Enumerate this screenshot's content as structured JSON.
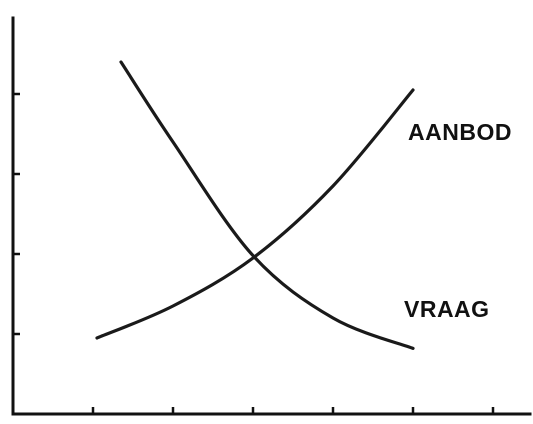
{
  "chart_data": {
    "type": "line",
    "title": "",
    "xlabel": "",
    "ylabel": "",
    "xlim": [
      0,
      6.6
    ],
    "ylim": [
      0,
      5.1
    ],
    "x_tick_values": [
      1,
      2,
      3,
      4,
      5,
      6
    ],
    "y_tick_values": [
      1,
      2,
      3,
      4
    ],
    "grid": false,
    "legend": "none",
    "series": [
      {
        "name": "AANBOD",
        "color": "#1a1a1a",
        "points": [
          [
            1.05,
            0.95
          ],
          [
            2,
            1.35
          ],
          [
            3,
            1.95
          ],
          [
            4,
            2.85
          ],
          [
            5,
            4.05
          ]
        ]
      },
      {
        "name": "VRAAG",
        "color": "#1a1a1a",
        "points": [
          [
            1.35,
            4.4
          ],
          [
            2,
            3.4
          ],
          [
            3,
            1.98
          ],
          [
            4,
            1.2
          ],
          [
            5,
            0.82
          ]
        ]
      }
    ]
  }
}
